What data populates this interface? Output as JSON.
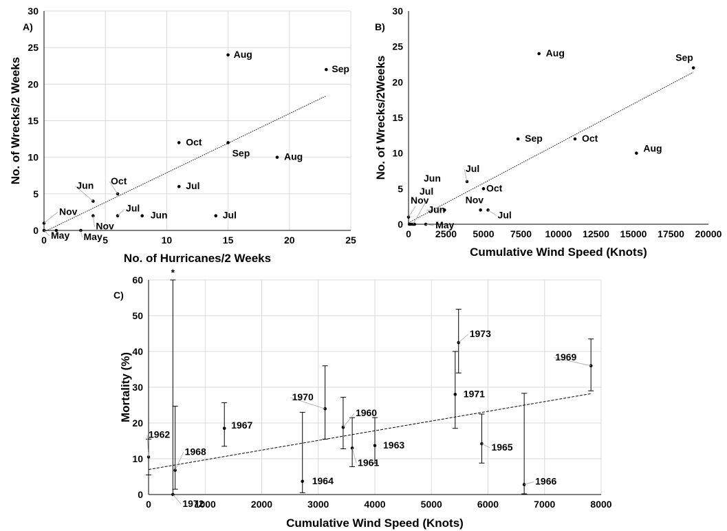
{
  "chart_data": [
    {
      "type": "scatter",
      "panel": "A)",
      "xlabel": "No. of Hurricanes/2 Weeks",
      "ylabel": "No. of Wrecks/2 Weeks",
      "xlim": [
        0,
        25
      ],
      "ylim": [
        0,
        30
      ],
      "xticks": [
        "0",
        "5",
        "10",
        "15",
        "20",
        "25"
      ],
      "yticks": [
        "0",
        "5",
        "10",
        "15",
        "20",
        "25",
        "30"
      ],
      "grid": true,
      "trendline": {
        "style": "dotted",
        "x": [
          0,
          23
        ],
        "y": [
          -0.2,
          18.4
        ]
      },
      "points": [
        {
          "x": 0,
          "y": 1,
          "label": "Nov"
        },
        {
          "x": 0,
          "y": 0,
          "label": "May"
        },
        {
          "x": 1,
          "y": 0,
          "label": ""
        },
        {
          "x": 3,
          "y": 0,
          "label": "May"
        },
        {
          "x": 4,
          "y": 4,
          "label": "Jun"
        },
        {
          "x": 4,
          "y": 2,
          "label": "Nov"
        },
        {
          "x": 6,
          "y": 5,
          "label": "Oct"
        },
        {
          "x": 6,
          "y": 2,
          "label": "Jul"
        },
        {
          "x": 8,
          "y": 2,
          "label": "Jun"
        },
        {
          "x": 11,
          "y": 12,
          "label": "Oct"
        },
        {
          "x": 11,
          "y": 6,
          "label": "Jul"
        },
        {
          "x": 14,
          "y": 2,
          "label": "Jul"
        },
        {
          "x": 15,
          "y": 24,
          "label": "Aug"
        },
        {
          "x": 15,
          "y": 12,
          "label": "Sep"
        },
        {
          "x": 19,
          "y": 10,
          "label": "Aug"
        },
        {
          "x": 23,
          "y": 22,
          "label": "Sep"
        }
      ]
    },
    {
      "type": "scatter",
      "panel": "B)",
      "xlabel": "Cumulative Wind Speed (Knots)",
      "ylabel": "No. of Wrecks/2Weeks",
      "xlim": [
        0,
        20000
      ],
      "ylim": [
        0,
        30
      ],
      "xticks": [
        "0",
        "2500",
        "5000",
        "7500",
        "10000",
        "12500",
        "15000",
        "17500",
        "20000"
      ],
      "yticks": [
        "0",
        "5",
        "10",
        "15",
        "20",
        "25",
        "30"
      ],
      "grid": false,
      "trendline": {
        "style": "dotted",
        "x": [
          0,
          19000
        ],
        "y": [
          0.2,
          21.4
        ]
      },
      "points": [
        {
          "x": 0,
          "y": 1,
          "label": ""
        },
        {
          "x": 50,
          "y": 0,
          "label": ""
        },
        {
          "x": 150,
          "y": 0,
          "label": ""
        },
        {
          "x": 300,
          "y": 0,
          "label": ""
        },
        {
          "x": 400,
          "y": 0,
          "label": ""
        },
        {
          "x": 1150,
          "y": 0,
          "label": "May"
        },
        {
          "x": 2400,
          "y": 2,
          "label": "Jun"
        },
        {
          "x": 3900,
          "y": 6,
          "label": "Jul"
        },
        {
          "x": 4800,
          "y": 2,
          "label": "Nov"
        },
        {
          "x": 5000,
          "y": 5,
          "label": "Oct"
        },
        {
          "x": 5300,
          "y": 2,
          "label": "Jul"
        },
        {
          "x": 7300,
          "y": 12,
          "label": "Sep"
        },
        {
          "x": 8700,
          "y": 24,
          "label": "Aug"
        },
        {
          "x": 11100,
          "y": 12,
          "label": "Oct"
        },
        {
          "x": 15200,
          "y": 10,
          "label": "Aug"
        },
        {
          "x": 19000,
          "y": 22,
          "label": "Sep"
        }
      ],
      "extra_labels": [
        "Jun",
        "Nov",
        "Jul"
      ]
    },
    {
      "type": "scatter",
      "panel": "C)",
      "xlabel": "Cumulative Wind Speed (Knots)",
      "ylabel": "Mortality (%)",
      "xlim": [
        0,
        8000
      ],
      "ylim": [
        0,
        60
      ],
      "xticks": [
        "0",
        "1000",
        "2000",
        "3000",
        "4000",
        "5000",
        "6000",
        "7000",
        "8000"
      ],
      "yticks": [
        "0",
        "10",
        "20",
        "30",
        "40",
        "50",
        "60"
      ],
      "grid": true,
      "trendline": {
        "style": "dashed",
        "x": [
          0,
          7820
        ],
        "y": [
          7.0,
          28.2
        ]
      },
      "asterisk": "*",
      "points": [
        {
          "x": 0,
          "y": 10.5,
          "lo": 5.5,
          "hi": 15.5,
          "label": "1962"
        },
        {
          "x": 430,
          "y": 0,
          "lo": 0,
          "hi": 60,
          "label": "1972"
        },
        {
          "x": 470,
          "y": 6.8,
          "lo": 1.5,
          "hi": 24.7,
          "label": "1968"
        },
        {
          "x": 1340,
          "y": 18.5,
          "lo": 13.5,
          "hi": 25.7,
          "label": "1967"
        },
        {
          "x": 2720,
          "y": 3.7,
          "lo": 0.5,
          "hi": 23.0,
          "label": "1964"
        },
        {
          "x": 3120,
          "y": 24.0,
          "lo": 15.5,
          "hi": 36.0,
          "label": "1970"
        },
        {
          "x": 3440,
          "y": 18.8,
          "lo": 12.8,
          "hi": 27.2,
          "label": "1960"
        },
        {
          "x": 3600,
          "y": 13.0,
          "lo": 7.8,
          "hi": 21.5,
          "label": "1961"
        },
        {
          "x": 4000,
          "y": 13.7,
          "lo": 8.8,
          "hi": 21.5,
          "label": "1963"
        },
        {
          "x": 5420,
          "y": 28.0,
          "lo": 18.5,
          "hi": 40.0,
          "label": "1971"
        },
        {
          "x": 5480,
          "y": 42.5,
          "lo": 34.0,
          "hi": 51.8,
          "label": "1973"
        },
        {
          "x": 5890,
          "y": 14.2,
          "lo": 8.8,
          "hi": 22.5,
          "label": "1965"
        },
        {
          "x": 6640,
          "y": 2.8,
          "lo": 0.2,
          "hi": 28.3,
          "label": "1966"
        },
        {
          "x": 7820,
          "y": 36.0,
          "lo": 29.0,
          "hi": 43.5,
          "label": "1969"
        }
      ]
    }
  ]
}
